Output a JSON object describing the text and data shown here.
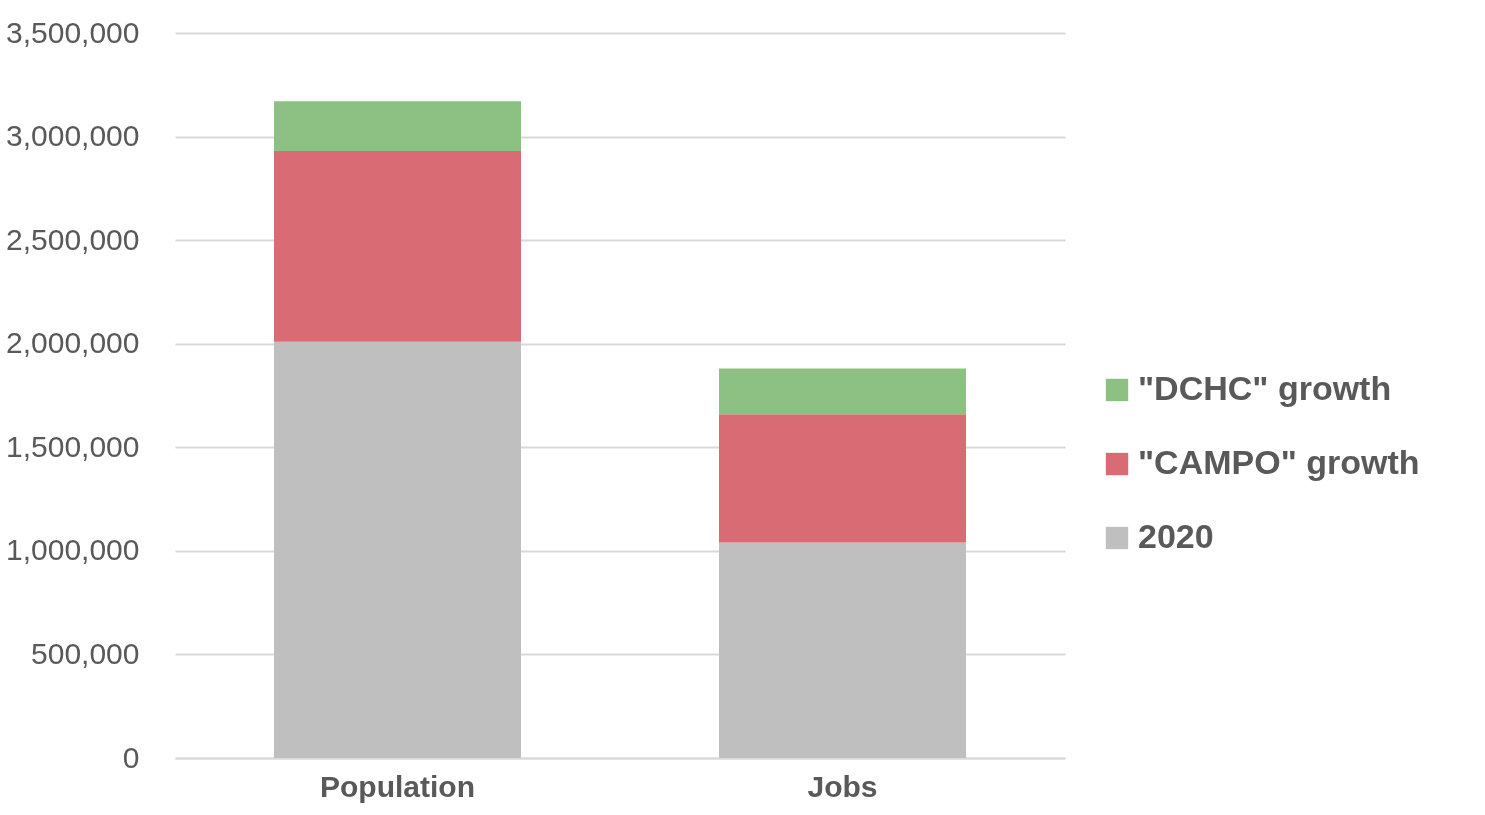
{
  "chart_data": {
    "type": "bar",
    "stacked": true,
    "categories": [
      "Population",
      "Jobs"
    ],
    "series": [
      {
        "name": "2020",
        "color": "#bfbfbf",
        "values": [
          2010000,
          1040000
        ]
      },
      {
        "name": "\"CAMPO\" growth",
        "color": "#d96b74",
        "values": [
          920000,
          620000
        ]
      },
      {
        "name": "\"DCHC\" growth",
        "color": "#8dc183",
        "values": [
          240000,
          220000
        ]
      }
    ],
    "ylim": [
      0,
      3500000
    ],
    "yticks": [
      0,
      {
        "value": 500000,
        "label": "500,000"
      },
      {
        "value": 1000000,
        "label": "1,000,000"
      },
      {
        "value": 1500000,
        "label": "1,500,000"
      },
      {
        "value": 2000000,
        "label": "2,000,000"
      },
      {
        "value": 2500000,
        "label": "2,500,000"
      },
      {
        "value": 3000000,
        "label": "3,000,000"
      },
      {
        "value": 3500000,
        "label": "3,500,000"
      }
    ],
    "grid": "y",
    "legend": "right"
  }
}
